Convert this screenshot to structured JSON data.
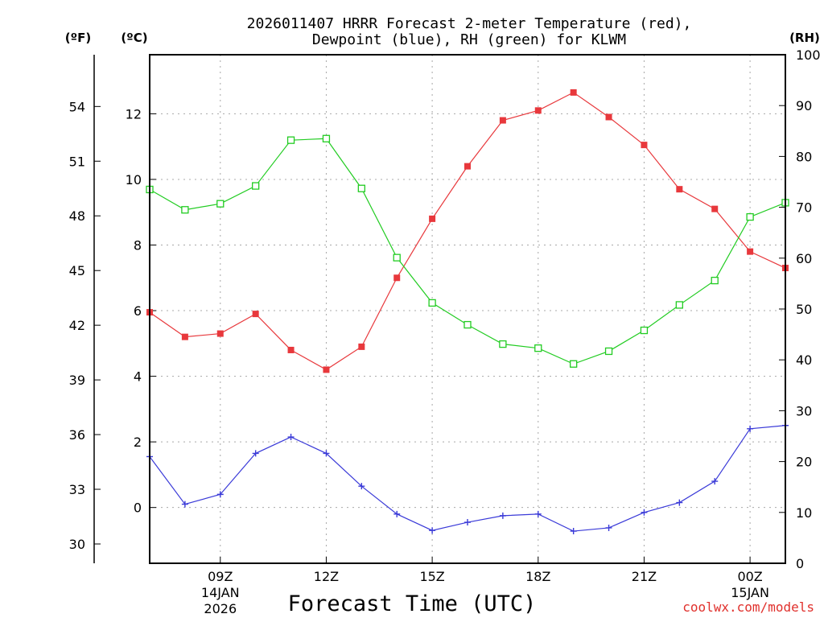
{
  "chart_data": {
    "type": "line",
    "title": "2026011407 HRRR Forecast 2-meter Temperature (red),",
    "subtitle": "Dewpoint (blue), RH (green) for KLWM",
    "xlabel": "Forecast Time (UTC)",
    "credit": "coolwx.com/models",
    "units": {
      "fahrenheit": "(ºF)",
      "celsius": "(ºC)",
      "rh": "(RH)"
    },
    "x": [
      7,
      8,
      9,
      10,
      11,
      12,
      13,
      14,
      15,
      16,
      17,
      18,
      19,
      20,
      21,
      22,
      23,
      24,
      25
    ],
    "xlim": [
      7,
      25
    ],
    "x_ticks": [
      {
        "x": 9,
        "label": "09Z",
        "sub1": "14JAN",
        "sub2": "2026"
      },
      {
        "x": 12,
        "label": "12Z",
        "sub1": "",
        "sub2": ""
      },
      {
        "x": 15,
        "label": "15Z",
        "sub1": "",
        "sub2": ""
      },
      {
        "x": 18,
        "label": "18Z",
        "sub1": "",
        "sub2": ""
      },
      {
        "x": 21,
        "label": "21Z",
        "sub1": "",
        "sub2": ""
      },
      {
        "x": 24,
        "label": "00Z",
        "sub1": "15JAN",
        "sub2": ""
      }
    ],
    "ylim_c": [
      -1.7,
      13.8
    ],
    "y_ticks_c": [
      0,
      2,
      4,
      6,
      8,
      10,
      12
    ],
    "y_ticks_f": [
      30,
      33,
      36,
      39,
      42,
      45,
      48,
      51,
      54
    ],
    "ylim_rh": [
      0,
      100
    ],
    "y_ticks_rh": [
      0,
      10,
      20,
      30,
      40,
      50,
      60,
      70,
      80,
      90,
      100
    ],
    "series": [
      {
        "name": "Temperature",
        "axis": "celsius",
        "color": "#e8383c",
        "marker": "filled-square",
        "values": [
          5.95,
          5.2,
          5.3,
          5.9,
          4.8,
          4.2,
          4.9,
          7.0,
          8.8,
          10.4,
          11.8,
          12.1,
          12.65,
          11.9,
          11.05,
          9.7,
          9.1,
          7.8,
          7.3
        ]
      },
      {
        "name": "Dewpoint",
        "axis": "celsius",
        "color": "#3a3ad8",
        "marker": "plus",
        "values": [
          1.55,
          0.1,
          0.4,
          1.65,
          2.15,
          1.65,
          0.65,
          -0.2,
          -0.7,
          -0.45,
          -0.25,
          -0.2,
          -0.72,
          -0.62,
          -0.15,
          0.15,
          0.8,
          2.4,
          2.5
        ]
      },
      {
        "name": "RH",
        "axis": "rh",
        "color": "#22cc22",
        "marker": "open-square",
        "values": [
          73.5,
          69.5,
          70.7,
          74.2,
          83.2,
          83.5,
          73.7,
          60.1,
          51.2,
          46.9,
          43.1,
          42.3,
          39.2,
          41.7,
          45.8,
          50.8,
          55.6,
          68.1,
          70.9
        ]
      }
    ]
  }
}
